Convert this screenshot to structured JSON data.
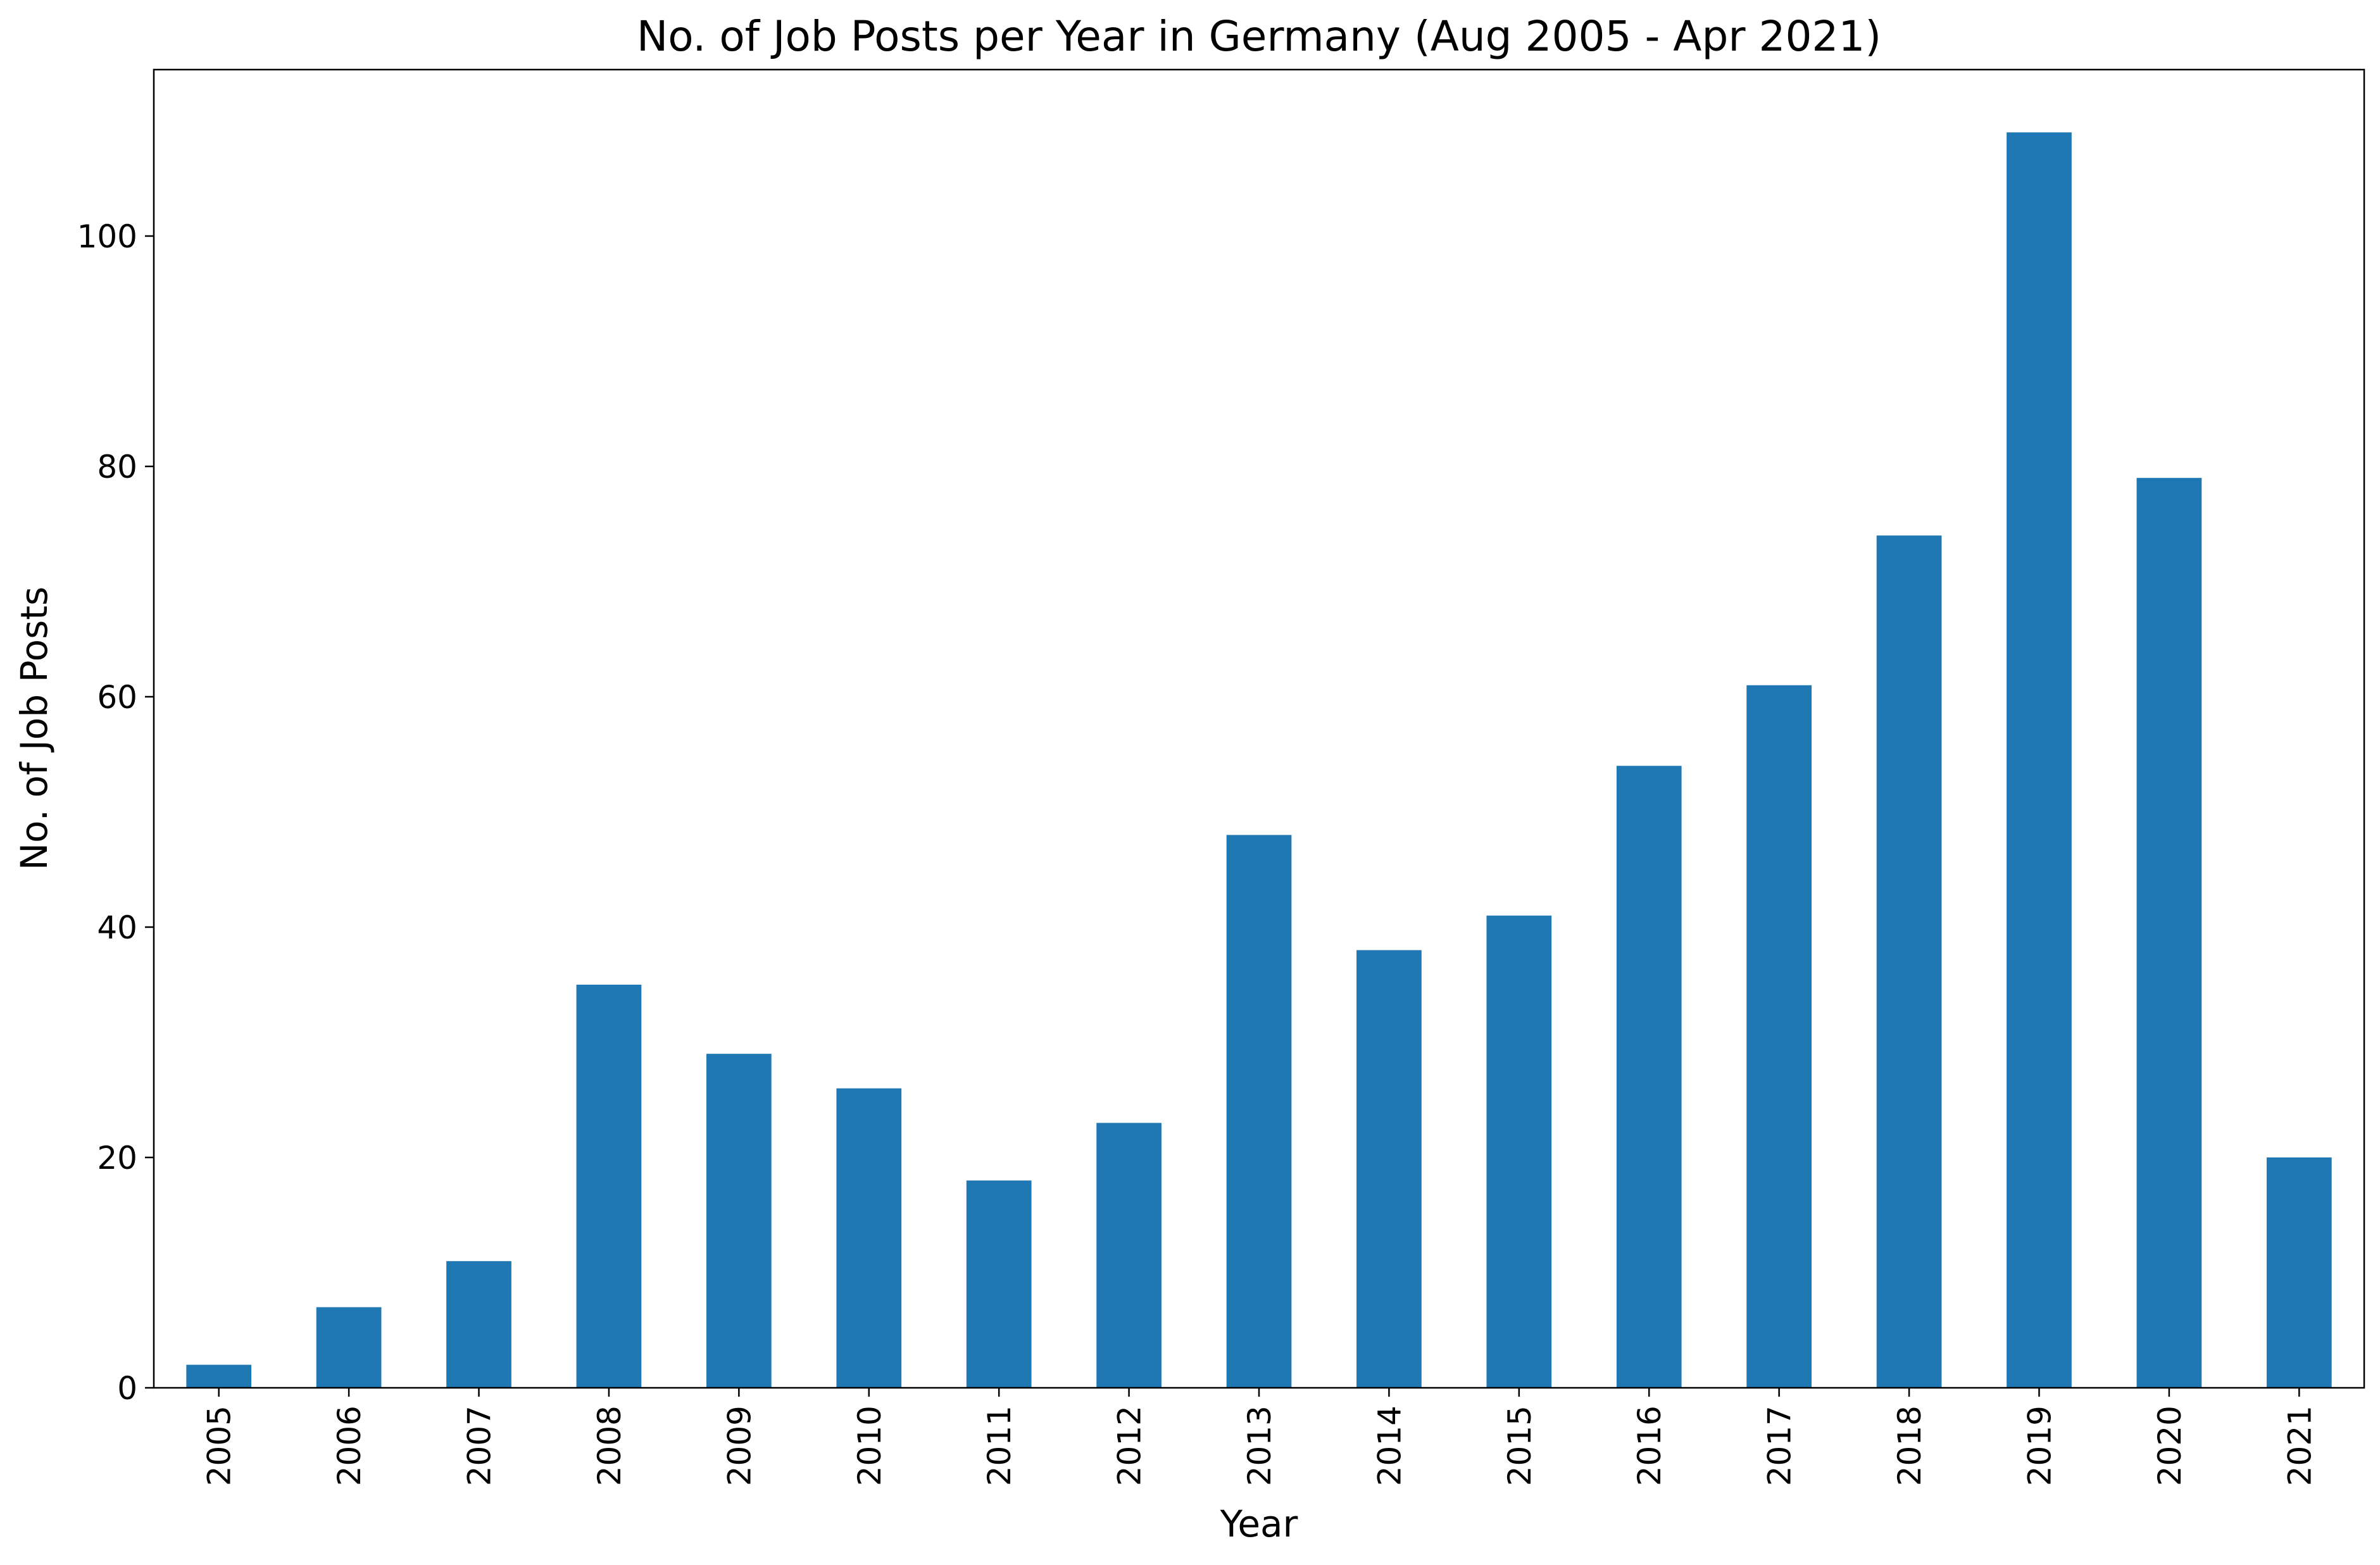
{
  "chart_data": {
    "type": "bar",
    "title": "No. of Job Posts per Year in Germany (Aug 2005 - Apr 2021)",
    "xlabel": "Year",
    "ylabel": "No. of Job Posts",
    "categories": [
      "2005",
      "2006",
      "2007",
      "2008",
      "2009",
      "2010",
      "2011",
      "2012",
      "2013",
      "2014",
      "2015",
      "2016",
      "2017",
      "2018",
      "2019",
      "2020",
      "2021"
    ],
    "values": [
      2,
      7,
      11,
      35,
      29,
      26,
      18,
      23,
      48,
      38,
      41,
      54,
      61,
      74,
      109,
      79,
      20
    ],
    "ylim": [
      0,
      114.45
    ],
    "yticks": [
      0,
      20,
      40,
      60,
      80,
      100
    ],
    "grid": false,
    "bar_color": "#1f77b4"
  }
}
